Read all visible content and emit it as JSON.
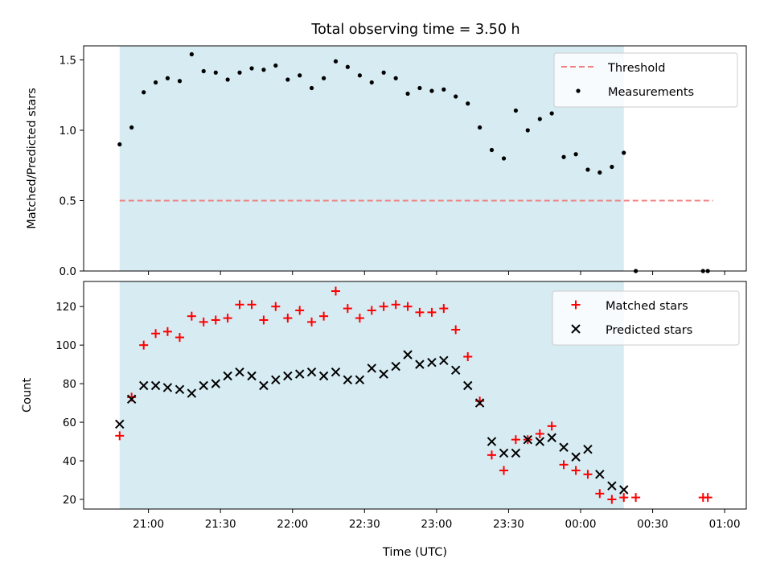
{
  "figure": {
    "title": "Total observing time = 3.50 h"
  },
  "colors": {
    "shade": "#add8e6",
    "threshold": "#f08080",
    "measurement": "#000000",
    "matched": "#ff0000",
    "predicted": "#000000"
  },
  "chart_data": [
    {
      "type": "scatter",
      "panel": "top",
      "ylabel": "Matched/Predicted stars",
      "xlabel": "",
      "ylim": [
        0,
        1.6
      ],
      "yticks": [
        0.0,
        0.5,
        1.0,
        1.5
      ],
      "ytick_labels": [
        "0.0",
        "0.5",
        "1.0",
        "1.5"
      ],
      "xlim_hours": [
        20.55,
        25.15
      ],
      "shaded_interval_hours": [
        20.8,
        24.3
      ],
      "legend": {
        "position": "top-right",
        "entries": [
          "Threshold",
          "Measurements"
        ]
      },
      "threshold": {
        "name": "Threshold",
        "value": 0.5,
        "x_start_hours": 20.8,
        "x_end_hours": 24.92
      },
      "series": [
        {
          "name": "Measurements",
          "marker": "dot",
          "x_hours": [
            20.8,
            20.883,
            20.967,
            21.05,
            21.133,
            21.217,
            21.3,
            21.383,
            21.467,
            21.55,
            21.633,
            21.717,
            21.8,
            21.883,
            21.967,
            22.05,
            22.133,
            22.217,
            22.3,
            22.383,
            22.467,
            22.55,
            22.633,
            22.717,
            22.8,
            22.883,
            22.967,
            23.05,
            23.133,
            23.217,
            23.3,
            23.383,
            23.467,
            23.55,
            23.633,
            23.717,
            23.8,
            23.883,
            23.967,
            24.05,
            24.133,
            24.217,
            24.3,
            24.383,
            24.85,
            24.883
          ],
          "values": [
            0.9,
            1.02,
            1.27,
            1.34,
            1.37,
            1.35,
            1.54,
            1.42,
            1.41,
            1.36,
            1.41,
            1.44,
            1.43,
            1.46,
            1.36,
            1.39,
            1.3,
            1.37,
            1.49,
            1.45,
            1.39,
            1.34,
            1.41,
            1.37,
            1.26,
            1.3,
            1.28,
            1.29,
            1.24,
            1.19,
            1.02,
            0.86,
            0.8,
            1.14,
            1.0,
            1.08,
            1.12,
            0.81,
            0.83,
            0.72,
            0.7,
            0.74,
            0.84,
            0.0,
            0.0,
            0.0
          ]
        }
      ]
    },
    {
      "type": "scatter",
      "panel": "bottom",
      "ylabel": "Count",
      "xlabel": "Time (UTC)",
      "ylim": [
        15,
        133
      ],
      "yticks": [
        20,
        40,
        60,
        80,
        100,
        120
      ],
      "ytick_labels": [
        "20",
        "40",
        "60",
        "80",
        "100",
        "120"
      ],
      "xlim_hours": [
        20.55,
        25.15
      ],
      "xticks_hours": [
        21.0,
        21.5,
        22.0,
        22.5,
        23.0,
        23.5,
        24.0,
        24.5,
        25.0
      ],
      "xtick_labels": [
        "21:00",
        "21:30",
        "22:00",
        "22:30",
        "23:00",
        "23:30",
        "00:00",
        "00:30",
        "01:00"
      ],
      "shaded_interval_hours": [
        20.8,
        24.3
      ],
      "legend": {
        "position": "top-right",
        "entries": [
          "Matched stars",
          "Predicted stars"
        ]
      },
      "series": [
        {
          "name": "Matched stars",
          "marker": "plus",
          "x_hours": [
            20.8,
            20.883,
            20.967,
            21.05,
            21.133,
            21.217,
            21.3,
            21.383,
            21.467,
            21.55,
            21.633,
            21.717,
            21.8,
            21.883,
            21.967,
            22.05,
            22.133,
            22.217,
            22.3,
            22.383,
            22.467,
            22.55,
            22.633,
            22.717,
            22.8,
            22.883,
            22.967,
            23.05,
            23.133,
            23.217,
            23.3,
            23.383,
            23.467,
            23.55,
            23.633,
            23.717,
            23.8,
            23.883,
            23.967,
            24.05,
            24.133,
            24.217,
            24.3,
            24.383,
            24.85,
            24.883
          ],
          "values": [
            53,
            73,
            100,
            106,
            107,
            104,
            115,
            112,
            113,
            114,
            121,
            121,
            113,
            120,
            114,
            118,
            112,
            115,
            128,
            119,
            114,
            118,
            120,
            121,
            120,
            117,
            117,
            119,
            108,
            94,
            71,
            43,
            35,
            51,
            51,
            54,
            58,
            38,
            35,
            33,
            23,
            20,
            21,
            21,
            21,
            21
          ]
        },
        {
          "name": "Predicted stars",
          "marker": "x",
          "x_hours": [
            20.8,
            20.883,
            20.967,
            21.05,
            21.133,
            21.217,
            21.3,
            21.383,
            21.467,
            21.55,
            21.633,
            21.717,
            21.8,
            21.883,
            21.967,
            22.05,
            22.133,
            22.217,
            22.3,
            22.383,
            22.467,
            22.55,
            22.633,
            22.717,
            22.8,
            22.883,
            22.967,
            23.05,
            23.133,
            23.217,
            23.3,
            23.383,
            23.467,
            23.55,
            23.633,
            23.717,
            23.8,
            23.883,
            23.967,
            24.05,
            24.133,
            24.217,
            24.3
          ],
          "values": [
            59,
            72,
            79,
            79,
            78,
            77,
            75,
            79,
            80,
            84,
            86,
            84,
            79,
            82,
            84,
            85,
            86,
            84,
            86,
            82,
            82,
            88,
            85,
            89,
            95,
            90,
            91,
            92,
            87,
            79,
            70,
            50,
            44,
            44,
            51,
            50,
            52,
            47,
            42,
            46,
            33,
            27,
            25
          ]
        }
      ]
    }
  ]
}
